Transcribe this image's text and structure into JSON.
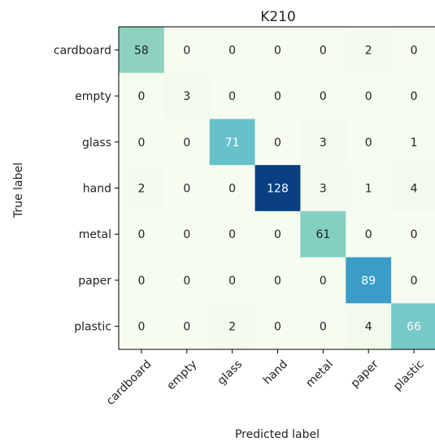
{
  "chart_data": {
    "type": "heatmap",
    "title": "K210",
    "xlabel": "Predicted label",
    "ylabel": "True label",
    "x_categories": [
      "cardboard",
      "empty",
      "glass",
      "hand",
      "metal",
      "paper",
      "plastic"
    ],
    "y_categories": [
      "cardboard",
      "empty",
      "glass",
      "hand",
      "metal",
      "paper",
      "plastic"
    ],
    "values": [
      [
        58,
        0,
        0,
        0,
        0,
        2,
        0
      ],
      [
        0,
        3,
        0,
        0,
        0,
        0,
        0
      ],
      [
        0,
        0,
        71,
        0,
        3,
        0,
        1
      ],
      [
        2,
        0,
        0,
        128,
        3,
        1,
        4
      ],
      [
        0,
        0,
        0,
        0,
        61,
        0,
        0
      ],
      [
        0,
        0,
        0,
        0,
        0,
        89,
        0
      ],
      [
        0,
        0,
        2,
        0,
        0,
        4,
        66
      ]
    ],
    "colormap": "GnBu",
    "value_range": [
      0,
      128
    ],
    "grid": false,
    "legend": "none"
  }
}
